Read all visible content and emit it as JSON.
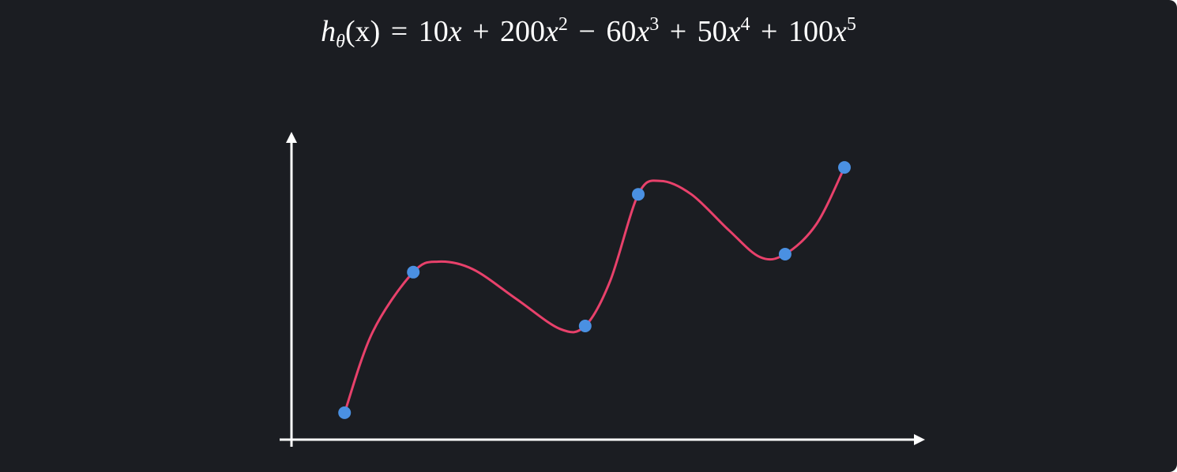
{
  "formula": {
    "lhs_h": "h",
    "lhs_sub": "θ",
    "lhs_arg": "(x)",
    "eq": "=",
    "t1_coef": "10",
    "t2_coef": "200",
    "t2_exp": "2",
    "t3_coef": "60",
    "t3_exp": "3",
    "t4_coef": "50",
    "t4_exp": "4",
    "t5_coef": "100",
    "t5_exp": "5",
    "var": "x",
    "plus": "+",
    "minus": "−"
  },
  "colors": {
    "background": "#1b1d22",
    "axis": "#ffffff",
    "curve": "#e8416b",
    "points": "#4a90e2"
  },
  "chart_data": {
    "type": "scatter",
    "title": "",
    "xlabel": "",
    "ylabel": "",
    "grid": false,
    "xlim": [
      0,
      10
    ],
    "ylim": [
      0,
      10
    ],
    "points": [
      {
        "x": 0.85,
        "y": 0.9
      },
      {
        "x": 1.95,
        "y": 5.6
      },
      {
        "x": 4.7,
        "y": 3.8
      },
      {
        "x": 5.55,
        "y": 8.2
      },
      {
        "x": 7.9,
        "y": 6.2
      },
      {
        "x": 8.85,
        "y": 9.1
      }
    ],
    "fit_curve": [
      {
        "x": 0.85,
        "y": 0.9
      },
      {
        "x": 1.3,
        "y": 3.6
      },
      {
        "x": 1.95,
        "y": 5.6
      },
      {
        "x": 2.35,
        "y": 5.95
      },
      {
        "x": 2.9,
        "y": 5.7
      },
      {
        "x": 3.6,
        "y": 4.7
      },
      {
        "x": 4.3,
        "y": 3.7
      },
      {
        "x": 4.7,
        "y": 3.8
      },
      {
        "x": 5.1,
        "y": 5.3
      },
      {
        "x": 5.55,
        "y": 8.2
      },
      {
        "x": 5.9,
        "y": 8.65
      },
      {
        "x": 6.4,
        "y": 8.2
      },
      {
        "x": 7.0,
        "y": 7.0
      },
      {
        "x": 7.5,
        "y": 6.1
      },
      {
        "x": 7.9,
        "y": 6.2
      },
      {
        "x": 8.4,
        "y": 7.2
      },
      {
        "x": 8.85,
        "y": 9.1
      }
    ]
  }
}
